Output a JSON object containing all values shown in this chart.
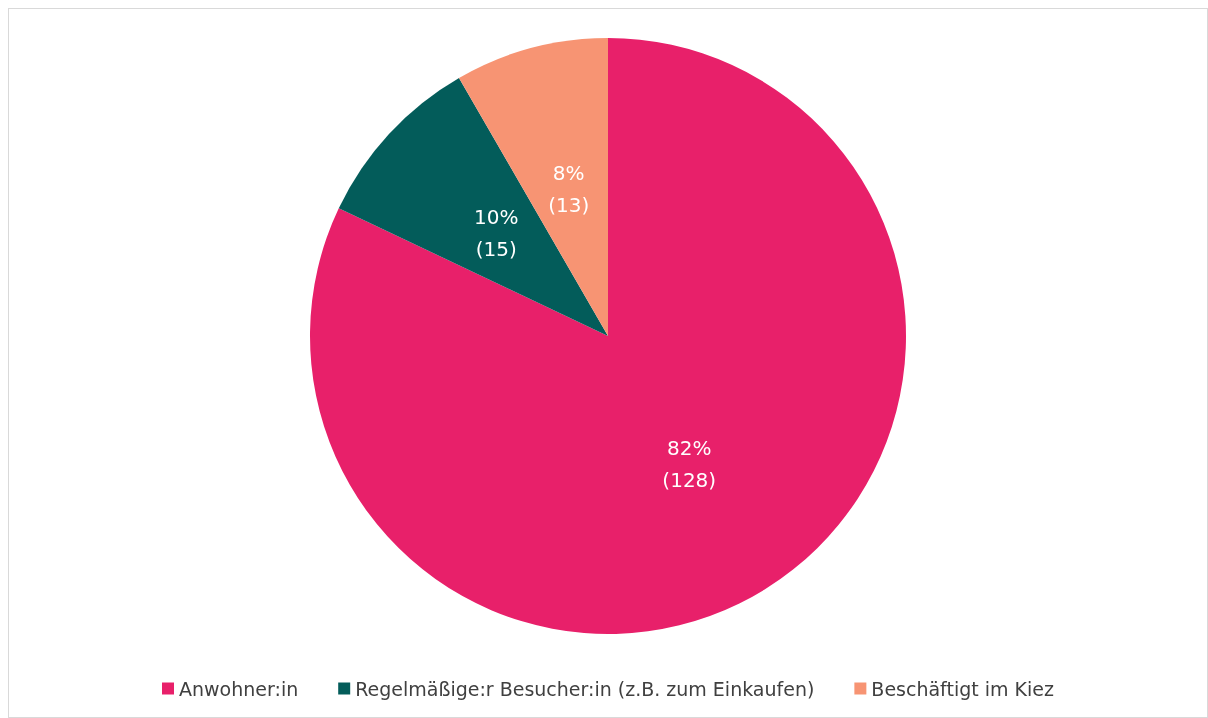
{
  "chart_data": {
    "type": "pie",
    "categories": [
      "Anwohner:in",
      "Regelmäßige:r Besucher:in (z.B. zum Einkaufen)",
      "Beschäftigt im Kiez"
    ],
    "values": [
      128,
      15,
      13
    ],
    "colors": [
      "#e8206a",
      "#035c5a",
      "#f79473"
    ],
    "value_labels": [
      "82%\n(128)",
      "10%\n(15)",
      "8%\n(13)"
    ],
    "legend": "bottom"
  }
}
